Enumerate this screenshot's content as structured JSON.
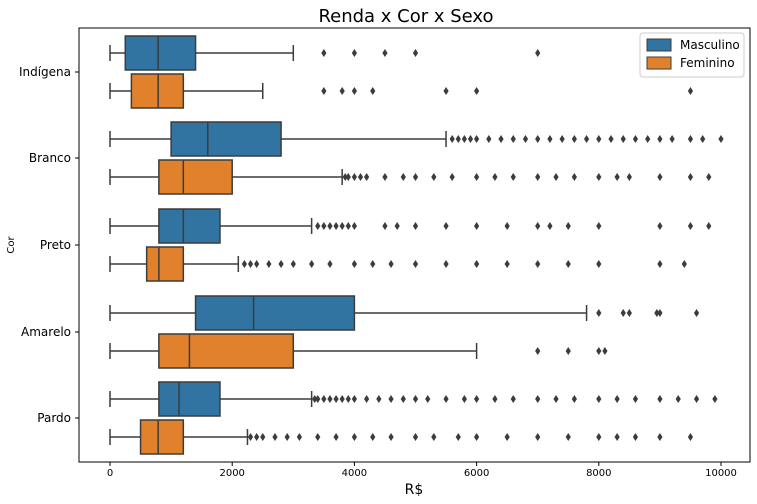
{
  "chart_data": {
    "type": "boxplot",
    "orientation": "horizontal",
    "title": "Renda x Cor x Sexo",
    "xlabel": "R$",
    "ylabel": "Cor",
    "xlim": [
      -500,
      10500
    ],
    "xticks": [
      0,
      2000,
      4000,
      6000,
      8000,
      10000
    ],
    "grid": false,
    "legend_position": "top-right",
    "categories": [
      "Indígena",
      "Branco",
      "Preto",
      "Amarelo",
      "Pardo"
    ],
    "series": [
      {
        "name": "Masculino",
        "color": "#3274a1",
        "boxes": [
          {
            "whisker_low": 0,
            "q1": 250,
            "median": 788,
            "q3": 1400,
            "whisker_high": 3000,
            "outliers": [
              3500,
              4000,
              4500,
              5000,
              7000
            ]
          },
          {
            "whisker_low": 0,
            "q1": 1000,
            "median": 1600,
            "q3": 2800,
            "whisker_high": 5500,
            "outliers": [
              5600,
              5700,
              5800,
              5900,
              6000,
              6200,
              6400,
              6600,
              6800,
              7000,
              7200,
              7400,
              7600,
              7800,
              8000,
              8200,
              8400,
              8600,
              8800,
              9000,
              9200,
              9500,
              9700,
              10000
            ]
          },
          {
            "whisker_low": 0,
            "q1": 800,
            "median": 1200,
            "q3": 1800,
            "whisker_high": 3300,
            "outliers": [
              3400,
              3500,
              3600,
              3700,
              3800,
              3900,
              4000,
              4500,
              4700,
              5000,
              5500,
              6000,
              6500,
              7000,
              7200,
              7500,
              8000,
              9000,
              9500,
              9800
            ]
          },
          {
            "whisker_low": 0,
            "q1": 1400,
            "median": 2350,
            "q3": 4000,
            "whisker_high": 7800,
            "outliers": [
              8000,
              8400,
              8500,
              8950,
              9000,
              9600
            ]
          },
          {
            "whisker_low": 0,
            "q1": 800,
            "median": 1130,
            "q3": 1800,
            "whisker_high": 3300,
            "outliers": [
              3350,
              3400,
              3500,
              3600,
              3700,
              3800,
              3900,
              4000,
              4200,
              4400,
              4600,
              4800,
              5000,
              5200,
              5500,
              5800,
              6000,
              6300,
              6600,
              7000,
              7300,
              7600,
              8000,
              8300,
              8600,
              9000,
              9300,
              9600,
              9900
            ]
          }
        ]
      },
      {
        "name": "Feminino",
        "color": "#e1812c",
        "boxes": [
          {
            "whisker_low": 0,
            "q1": 350,
            "median": 788,
            "q3": 1200,
            "whisker_high": 2500,
            "outliers": [
              3500,
              3800,
              4000,
              4300,
              5500,
              6000,
              9500
            ]
          },
          {
            "whisker_low": 0,
            "q1": 800,
            "median": 1200,
            "q3": 2000,
            "whisker_high": 3800,
            "outliers": [
              3850,
              3900,
              4000,
              4100,
              4200,
              4500,
              4800,
              5000,
              5300,
              5600,
              6000,
              6300,
              6600,
              7000,
              7300,
              7600,
              8000,
              8300,
              8500,
              9000,
              9500,
              9800
            ]
          },
          {
            "whisker_low": 0,
            "q1": 600,
            "median": 800,
            "q3": 1200,
            "whisker_high": 2100,
            "outliers": [
              2200,
              2300,
              2400,
              2600,
              2800,
              3000,
              3300,
              3600,
              4000,
              4300,
              4600,
              5000,
              5500,
              6000,
              6500,
              7000,
              7500,
              8000,
              9000,
              9400
            ]
          },
          {
            "whisker_low": 0,
            "q1": 800,
            "median": 1300,
            "q3": 3000,
            "whisker_high": 6000,
            "outliers": [
              7000,
              7500,
              8000,
              8100
            ]
          },
          {
            "whisker_low": 0,
            "q1": 500,
            "median": 788,
            "q3": 1200,
            "whisker_high": 2250,
            "outliers": [
              2300,
              2400,
              2500,
              2700,
              2900,
              3100,
              3400,
              3700,
              4000,
              4300,
              4600,
              5000,
              5300,
              5700,
              6000,
              6500,
              7000,
              7500,
              8000,
              8300,
              8600,
              9000,
              9500
            ]
          }
        ]
      }
    ]
  }
}
